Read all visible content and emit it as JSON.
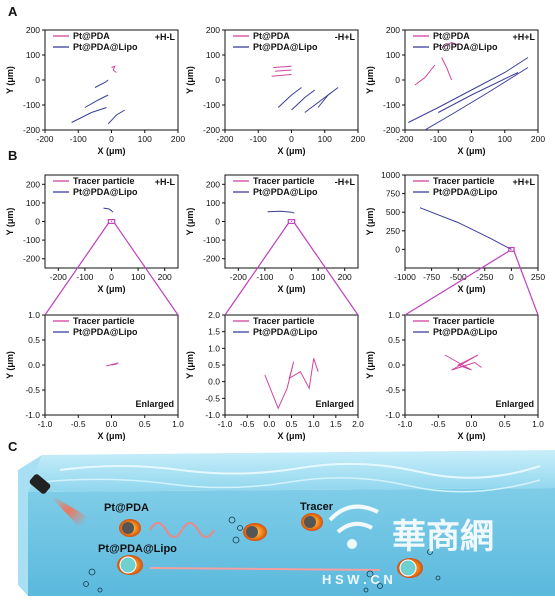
{
  "panel_labels": {
    "a": "A",
    "b": "B",
    "c": "C"
  },
  "colors": {
    "pink": "#d1459f",
    "blue": "#3a3f9a",
    "box": "#c040c0",
    "water": "#8fd6ee"
  },
  "scene": {
    "label_ptpda": "Pt@PDA",
    "label_lipo": "Pt@PDA@Lipo",
    "label_tracer": "Tracer",
    "watermark_cn": "華商網",
    "watermark_url": "H S W . C N"
  },
  "chart_data": [
    {
      "id": "A1",
      "type": "line",
      "condition": "+H-L",
      "xlabel": "X (μm)",
      "ylabel": "Y (μm)",
      "xlim": [
        -200,
        200
      ],
      "ylim": [
        -200,
        200
      ],
      "xticks": [
        -200,
        -100,
        0,
        100,
        200
      ],
      "yticks": [
        -200,
        -100,
        0,
        100,
        200
      ],
      "series": [
        {
          "name": "Pt@PDA",
          "color": "pink",
          "paths": [
            [
              [
                0,
                50
              ],
              [
                10,
                55
              ],
              [
                5,
                40
              ],
              [
                15,
                30
              ]
            ]
          ]
        },
        {
          "name": "Pt@PDA@Lipo",
          "color": "blue",
          "paths": [
            [
              [
                -80,
                -110
              ],
              [
                -40,
                -80
              ],
              [
                -10,
                -60
              ]
            ],
            [
              [
                -120,
                -170
              ],
              [
                -60,
                -130
              ],
              [
                -15,
                -110
              ]
            ],
            [
              [
                -10,
                -175
              ],
              [
                15,
                -140
              ],
              [
                40,
                -120
              ]
            ],
            [
              [
                -50,
                -30
              ],
              [
                -20,
                -10
              ],
              [
                -10,
                0
              ]
            ]
          ]
        }
      ]
    },
    {
      "id": "A2",
      "type": "line",
      "condition": "-H+L",
      "xlabel": "X (μm)",
      "ylabel": "Y (μm)",
      "xlim": [
        -200,
        200
      ],
      "ylim": [
        -200,
        200
      ],
      "xticks": [
        -200,
        -100,
        0,
        100,
        200
      ],
      "yticks": [
        -200,
        -100,
        0,
        100,
        200
      ],
      "series": [
        {
          "name": "Pt@PDA",
          "color": "pink",
          "paths": [
            [
              [
                -55,
                50
              ],
              [
                0,
                55
              ]
            ],
            [
              [
                -60,
                15
              ],
              [
                0,
                22
              ]
            ],
            [
              [
                -50,
                35
              ],
              [
                0,
                40
              ]
            ]
          ]
        },
        {
          "name": "Pt@PDA@Lipo",
          "color": "blue",
          "paths": [
            [
              [
                -40,
                -110
              ],
              [
                0,
                -60
              ],
              [
                30,
                -30
              ]
            ],
            [
              [
                0,
                -120
              ],
              [
                40,
                -70
              ],
              [
                70,
                -40
              ]
            ],
            [
              [
                40,
                -130
              ],
              [
                80,
                -90
              ],
              [
                120,
                -50
              ]
            ],
            [
              [
                80,
                -110
              ],
              [
                110,
                -60
              ],
              [
                140,
                -30
              ]
            ]
          ]
        }
      ]
    },
    {
      "id": "A3",
      "type": "line",
      "condition": "+H+L",
      "xlabel": "X (μm)",
      "ylabel": "Y (μm)",
      "xlim": [
        -200,
        200
      ],
      "ylim": [
        -200,
        200
      ],
      "xticks": [
        -200,
        -100,
        0,
        100,
        200
      ],
      "yticks": [
        -200,
        -100,
        0,
        100,
        200
      ],
      "series": [
        {
          "name": "Pt@PDA",
          "color": "pink",
          "paths": [
            [
              [
                -170,
                -20
              ],
              [
                -140,
                10
              ],
              [
                -110,
                60
              ]
            ],
            [
              [
                -60,
                0
              ],
              [
                -75,
                50
              ],
              [
                -90,
                90
              ]
            ],
            [
              [
                -90,
                130
              ],
              [
                -60,
                150
              ],
              [
                -40,
                140
              ]
            ]
          ]
        },
        {
          "name": "Pt@PDA@Lipo",
          "color": "blue",
          "paths": [
            [
              [
                -190,
                -170
              ],
              [
                -100,
                -110
              ],
              [
                0,
                -40
              ],
              [
                100,
                30
              ],
              [
                170,
                90
              ]
            ],
            [
              [
                -140,
                -200
              ],
              [
                -50,
                -130
              ],
              [
                50,
                -50
              ],
              [
                170,
                50
              ]
            ],
            [
              [
                -100,
                -130
              ],
              [
                0,
                -60
              ],
              [
                140,
                30
              ]
            ]
          ]
        }
      ]
    },
    {
      "id": "B1",
      "type": "line",
      "condition": "+H-L",
      "xlabel": "X (μm)",
      "ylabel": "Y (μm)",
      "xlim": [
        -250,
        250
      ],
      "ylim": [
        -250,
        250
      ],
      "xticks": [
        -200,
        -100,
        0,
        100,
        200
      ],
      "yticks": [
        -200,
        -100,
        0,
        100,
        200
      ],
      "legend": [
        "Tracer particle",
        "Pt@PDA@Lipo"
      ],
      "series": [
        {
          "name": "Tracer particle",
          "color": "pink",
          "paths": [
            [
              [
                -2,
                0
              ],
              [
                2,
                1
              ]
            ]
          ]
        },
        {
          "name": "Pt@PDA@Lipo",
          "color": "blue",
          "paths": [
            [
              [
                -30,
                72
              ],
              [
                -10,
                68
              ],
              [
                0,
                58
              ],
              [
                5,
                50
              ]
            ]
          ]
        }
      ],
      "zoom_box": [
        -12,
        12,
        -10,
        10
      ]
    },
    {
      "id": "B2",
      "type": "line",
      "condition": "-H+L",
      "xlabel": "X (μm)",
      "ylabel": "Y (μm)",
      "xlim": [
        -250,
        250
      ],
      "ylim": [
        -250,
        250
      ],
      "xticks": [
        -200,
        -100,
        0,
        100,
        200
      ],
      "yticks": [
        -200,
        -100,
        0,
        100,
        200
      ],
      "legend": [
        "Tracer particle",
        "Pt@PDA@Lipo"
      ],
      "series": [
        {
          "name": "Tracer particle",
          "color": "pink",
          "paths": [
            [
              [
                -2,
                0
              ],
              [
                2,
                1
              ]
            ]
          ]
        },
        {
          "name": "Pt@PDA@Lipo",
          "color": "blue",
          "paths": [
            [
              [
                -90,
                52
              ],
              [
                -40,
                55
              ],
              [
                0,
                50
              ],
              [
                10,
                45
              ]
            ]
          ]
        }
      ],
      "zoom_box": [
        -12,
        12,
        -10,
        10
      ]
    },
    {
      "id": "B3",
      "type": "line",
      "condition": "+H+L",
      "xlabel": "X (μm)",
      "ylabel": "Y (μm)",
      "xlim": [
        -1000,
        250
      ],
      "ylim": [
        -250,
        1000
      ],
      "xticks": [
        -1000,
        -750,
        -500,
        -250,
        0,
        250
      ],
      "yticks": [
        0,
        250,
        500,
        750,
        1000
      ],
      "legend": [
        "Tracer particle",
        "Pt@PDA@Lipo"
      ],
      "series": [
        {
          "name": "Tracer particle",
          "color": "pink",
          "paths": [
            [
              [
                -2,
                0
              ],
              [
                2,
                1
              ]
            ]
          ]
        },
        {
          "name": "Pt@PDA@Lipo",
          "color": "blue",
          "paths": [
            [
              [
                -860,
                560
              ],
              [
                -500,
                360
              ],
              [
                -200,
                150
              ],
              [
                0,
                0
              ]
            ]
          ]
        }
      ],
      "zoom_box": [
        -25,
        25,
        -25,
        25
      ]
    },
    {
      "id": "C1",
      "type": "line",
      "note": "Enlarged",
      "xlabel": "X (μm)",
      "ylabel": "Y (μm)",
      "xlim": [
        -1.0,
        1.0
      ],
      "ylim": [
        -1.0,
        1.0
      ],
      "xticks": [
        -1.0,
        -0.5,
        0.0,
        0.5,
        1.0
      ],
      "yticks": [
        -1.0,
        -0.5,
        0.0,
        0.5,
        1.0
      ],
      "legend": [
        "Tracer particle",
        "Pt@PDA@Lipo"
      ],
      "series": [
        {
          "name": "Tracer particle",
          "color": "pink",
          "paths": [
            [
              [
                -0.08,
                -0.02
              ],
              [
                0.1,
                0.04
              ],
              [
                0.0,
                0.0
              ],
              [
                0.08,
                0.02
              ]
            ]
          ]
        },
        {
          "name": "Pt@PDA@Lipo",
          "color": "blue",
          "paths": []
        }
      ]
    },
    {
      "id": "C2",
      "type": "line",
      "note": "Enlarged",
      "xlabel": "X (μm)",
      "ylabel": "Y (μm)",
      "xlim": [
        -1.0,
        2.0
      ],
      "ylim": [
        -1.0,
        2.0
      ],
      "xticks": [
        -1.0,
        -0.5,
        0.0,
        0.5,
        1.0,
        1.5,
        2.0
      ],
      "yticks": [
        -1.0,
        -0.5,
        0.0,
        0.5,
        1.0,
        1.5,
        2.0
      ],
      "legend": [
        "Tracer particle",
        "Pt@PDA@Lipo"
      ],
      "series": [
        {
          "name": "Tracer particle",
          "color": "pink",
          "paths": [
            [
              [
                -0.1,
                0.2
              ],
              [
                0.2,
                -0.8
              ],
              [
                0.4,
                -0.2
              ],
              [
                0.55,
                0.6
              ],
              [
                0.45,
                0.1
              ],
              [
                0.7,
                0.3
              ],
              [
                0.9,
                -0.2
              ],
              [
                1.0,
                0.7
              ],
              [
                1.1,
                0.3
              ]
            ]
          ]
        },
        {
          "name": "Pt@PDA@Lipo",
          "color": "blue",
          "paths": []
        }
      ]
    },
    {
      "id": "C3",
      "type": "line",
      "note": "Enlarged",
      "xlabel": "X (μm)",
      "ylabel": "Y (μm)",
      "xlim": [
        -1.0,
        1.0
      ],
      "ylim": [
        -1.0,
        1.0
      ],
      "xticks": [
        -1.0,
        -0.5,
        0.0,
        0.5,
        1.0
      ],
      "yticks": [
        -1.0,
        -0.5,
        0.0,
        0.5,
        1.0
      ],
      "legend": [
        "Tracer particle",
        "Pt@PDA@Lipo"
      ],
      "series": [
        {
          "name": "Tracer particle",
          "color": "pink",
          "paths": [
            [
              [
                -0.4,
                0.2
              ],
              [
                0.0,
                -0.1
              ],
              [
                -0.2,
                0.0
              ],
              [
                0.1,
                0.2
              ],
              [
                -0.3,
                -0.1
              ],
              [
                0.05,
                0.05
              ],
              [
                0.15,
                -0.05
              ]
            ]
          ]
        },
        {
          "name": "Pt@PDA@Lipo",
          "color": "blue",
          "paths": []
        }
      ]
    }
  ]
}
